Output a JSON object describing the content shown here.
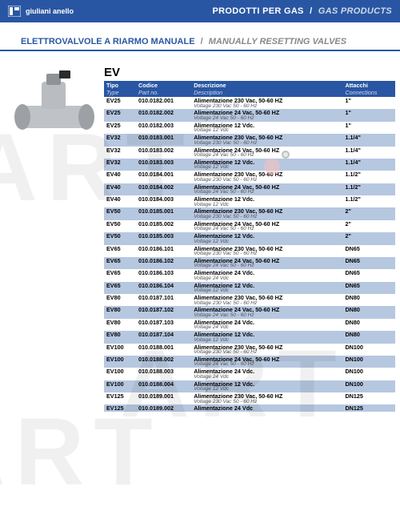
{
  "brand": "giuliani anello",
  "topbar": {
    "it": "PRODOTTI PER GAS",
    "en": "GAS PRODUCTS"
  },
  "section": {
    "it": "ELETTROVALVOLE A RIARMO MANUALE",
    "en": "MANUALLY RESETTING VALVES"
  },
  "heading": "EV",
  "watermark": "ART",
  "columns": [
    {
      "it": "Tipo",
      "en": "Type"
    },
    {
      "it": "Codice",
      "en": "Part no."
    },
    {
      "it": "Descrizione",
      "en": "Description"
    },
    {
      "it": "Attacchi",
      "en": "Connections"
    }
  ],
  "colors": {
    "brand": "#2956a3",
    "row_even": "#b6c7e0",
    "row_odd": "#ffffff",
    "header_sub": "#cfd9ea"
  },
  "rows": [
    {
      "tipo": "EV25",
      "code": "010.0182.001",
      "d_it": "Alimentazione 230  Vac, 50-60 HZ",
      "d_en": "Voltage 230 Vac 50 - 60 Hz",
      "conn": "1\""
    },
    {
      "tipo": "EV25",
      "code": "010.0182.002",
      "d_it": "Alimentazione 24  Vac, 50-60 HZ",
      "d_en": "Voltage 24 Vac 50 - 60 Hz",
      "conn": "1\""
    },
    {
      "tipo": "EV25",
      "code": "010.0182.003",
      "d_it": "Alimentazione 12 Vdc.",
      "d_en": "Voltage 12 Vdc",
      "conn": "1\""
    },
    {
      "tipo": "EV32",
      "code": "010.0183.001",
      "d_it": "Alimentazione 230  Vac, 50-60 HZ",
      "d_en": "Voltage 230 Vac 50 - 60 Hz",
      "conn": "1.1/4\""
    },
    {
      "tipo": "EV32",
      "code": "010.0183.002",
      "d_it": "Alimentazione 24  Vac, 50-60 HZ",
      "d_en": "Voltage 24 Vac 50 - 60 Hz",
      "conn": "1.1/4\""
    },
    {
      "tipo": "EV32",
      "code": "010.0183.003",
      "d_it": "Alimentazione 12 Vdc.",
      "d_en": "Voltage 12 Vdc",
      "conn": "1.1/4\""
    },
    {
      "tipo": "EV40",
      "code": "010.0184.001",
      "d_it": "Alimentazione 230  Vac, 50-60 HZ",
      "d_en": "Voltage 230 Vac 50 - 60 Hz",
      "conn": "1.1/2\""
    },
    {
      "tipo": "EV40",
      "code": "010.0184.002",
      "d_it": "Alimentazione 24  Vac, 50-60 HZ",
      "d_en": "Voltage 24 Vac 50 - 60 Hz",
      "conn": "1.1/2\""
    },
    {
      "tipo": "EV40",
      "code": "010.0184.003",
      "d_it": "Alimentazione 12  Vdc.",
      "d_en": "Voltage 12 Vdc",
      "conn": "1.1/2\""
    },
    {
      "tipo": "EV50",
      "code": "010.0185.001",
      "d_it": "Alimentazione 230  Vac, 50-60 HZ",
      "d_en": "Voltage 230 Vac 50 - 60 Hz",
      "conn": "2\""
    },
    {
      "tipo": "EV50",
      "code": "010.0185.002",
      "d_it": "Alimentazione 24  Vac, 50-60 HZ",
      "d_en": "Voltage 24 Vac 50 - 60 Hz",
      "conn": "2\""
    },
    {
      "tipo": "EV50",
      "code": "010.0185.003",
      "d_it": "Alimentazione 12  Vdc.",
      "d_en": "Voltage 12 Vdc",
      "conn": "2\""
    },
    {
      "tipo": "EV65",
      "code": "010.0186.101",
      "d_it": "Alimentazione 230  Vac, 50-60 HZ",
      "d_en": "Voltage 230 Vac 50 - 60 Hz",
      "conn": "DN65"
    },
    {
      "tipo": "EV65",
      "code": "010.0186.102",
      "d_it": "Alimentazione 24  Vac, 50-60 HZ",
      "d_en": "Voltage 24 Vac 50 - 60 Hz",
      "conn": "DN65"
    },
    {
      "tipo": "EV65",
      "code": "010.0186.103",
      "d_it": "Alimentazione 24 Vdc.",
      "d_en": "Voltage 24 Vdc",
      "conn": "DN65"
    },
    {
      "tipo": "EV65",
      "code": "010.0186.104",
      "d_it": "Alimentazione 12 Vdc.",
      "d_en": "Voltage 12 Vdc",
      "conn": "DN65"
    },
    {
      "tipo": "EV80",
      "code": "010.0187.101",
      "d_it": "Alimentazione 230  Vac, 50-60 HZ",
      "d_en": "Voltage 230 Vac 50 - 60 Hz",
      "conn": "DN80"
    },
    {
      "tipo": "EV80",
      "code": "010.0187.102",
      "d_it": "Alimentazione 24  Vac, 50-60 HZ",
      "d_en": "Voltage 24 Vac 50 - 60 Hz",
      "conn": "DN80"
    },
    {
      "tipo": "EV80",
      "code": "010.0187.103",
      "d_it": "Alimentazione 24 Vdc.",
      "d_en": "Voltage 24 Vdc",
      "conn": "DN80"
    },
    {
      "tipo": "EV80",
      "code": "010.0187.104",
      "d_it": "Alimentazione 12 Vdc.",
      "d_en": "Voltage 12 Vdc",
      "conn": "DN80"
    },
    {
      "tipo": "EV100",
      "code": "010.0188.001",
      "d_it": "Alimentazione 230  Vac, 50-60 HZ",
      "d_en": "Voltage 230 Vac 50 - 60 Hz",
      "conn": "DN100"
    },
    {
      "tipo": "EV100",
      "code": "010.0188.002",
      "d_it": "Alimentazione 24  Vac, 50-60 HZ",
      "d_en": "Voltage 24 Vac 50 - 60 Hz",
      "conn": "DN100"
    },
    {
      "tipo": "EV100",
      "code": "010.0188.003",
      "d_it": "Alimentazione 24 Vdc.",
      "d_en": "Voltage 24 Vdc",
      "conn": "DN100"
    },
    {
      "tipo": "EV100",
      "code": "010.0188.004",
      "d_it": "Alimentazione 12 Vdc.",
      "d_en": "Voltage 12 Vdc",
      "conn": "DN100"
    },
    {
      "tipo": "EV125",
      "code": "010.0189.001",
      "d_it": "Alimentazione 230  Vac, 50-60 HZ",
      "d_en": "Voltage 230 Vac 50 - 60 Hz",
      "conn": "DN125"
    },
    {
      "tipo": "EV125",
      "code": "010.0189.002",
      "d_it": "Alimentazione 24  Vdc",
      "d_en": "",
      "conn": "DN125"
    }
  ]
}
